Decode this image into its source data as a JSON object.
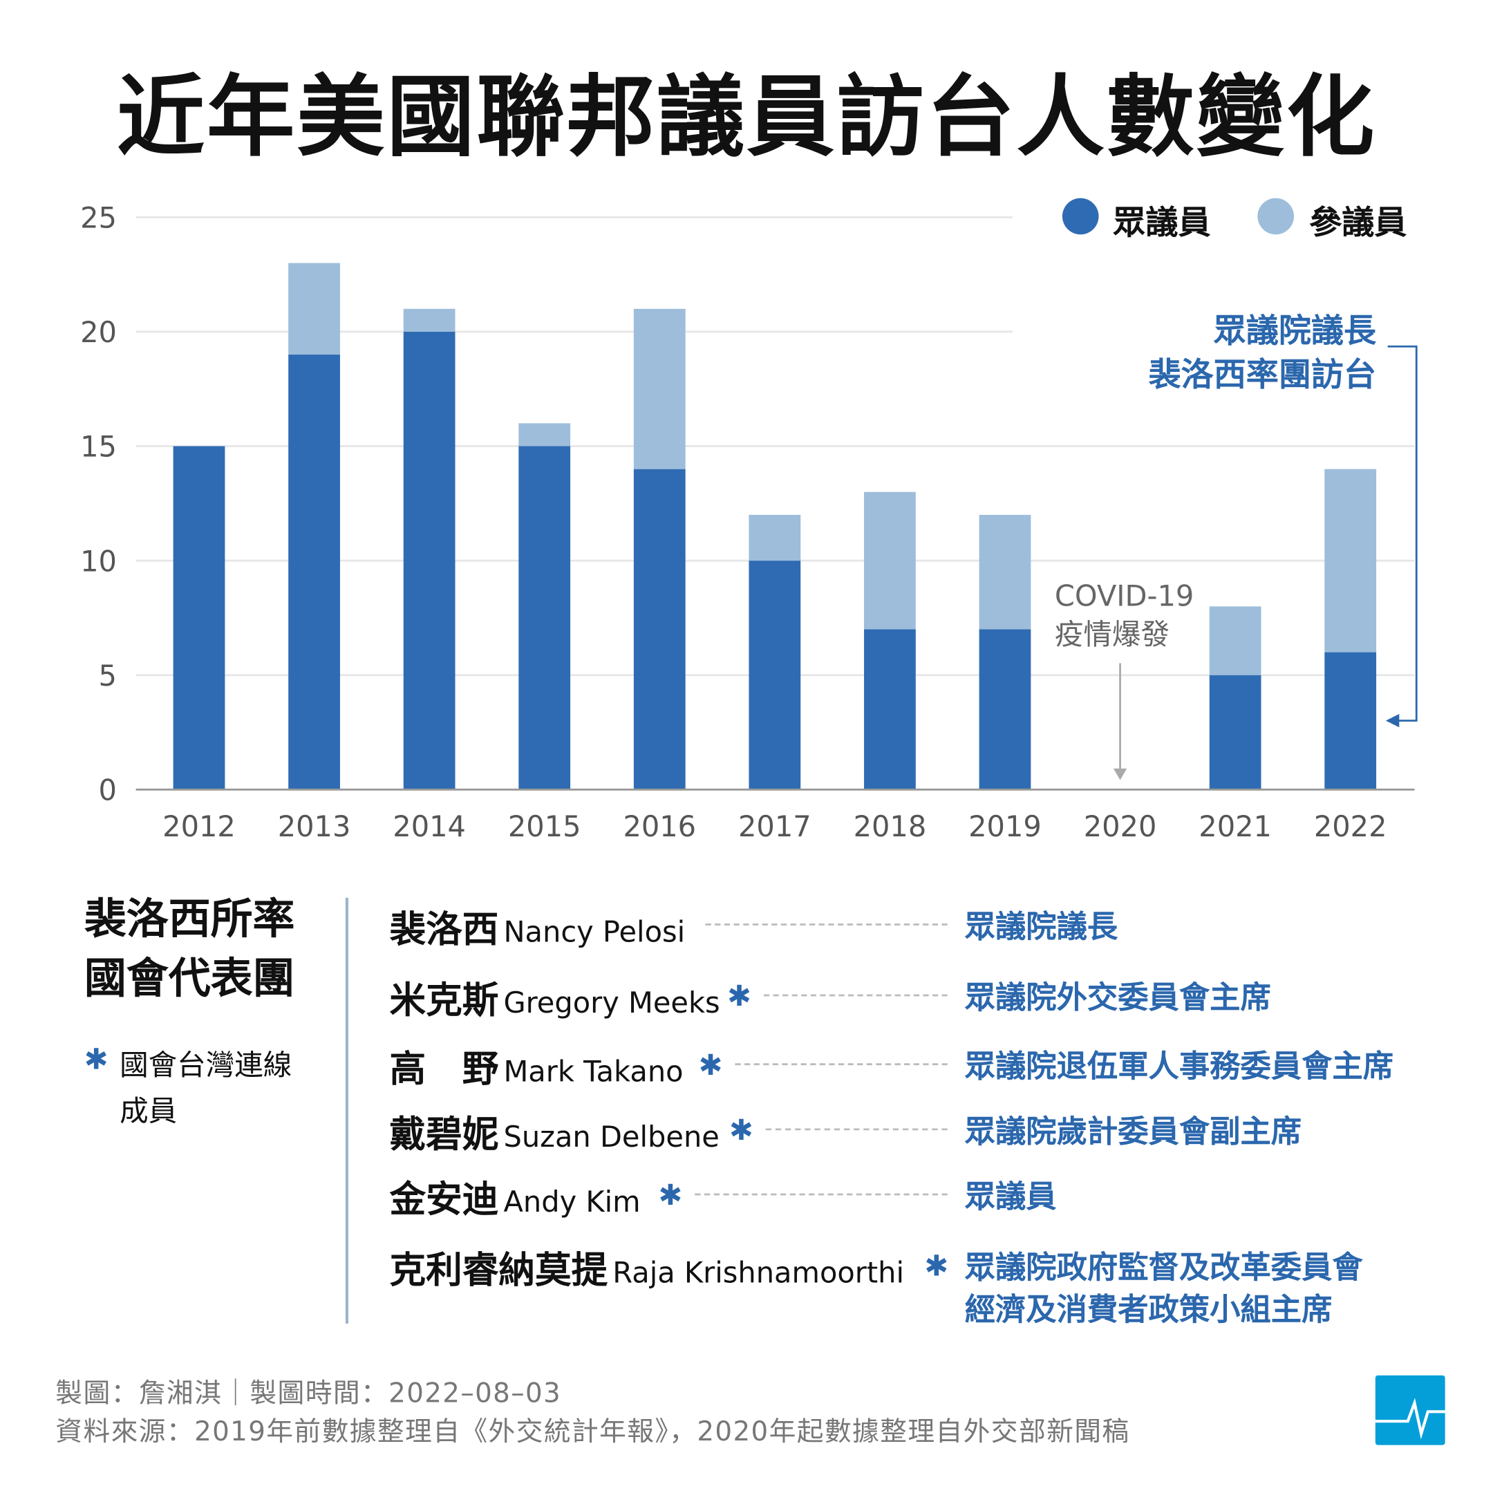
{
  "title": "近年美國聯邦議員訪台人數變化",
  "colors": {
    "house": "#2f6bb3",
    "senate": "#9dbddb",
    "accent": "#2b67ad",
    "logo": "#049fd9"
  },
  "chart_data": {
    "type": "bar",
    "stacked": true,
    "categories": [
      "2012",
      "2013",
      "2014",
      "2015",
      "2016",
      "2017",
      "2018",
      "2019",
      "2020",
      "2021",
      "2022"
    ],
    "series": [
      {
        "name": "眾議員",
        "values": [
          15,
          19,
          20,
          15,
          14,
          10,
          7,
          7,
          0,
          5,
          6
        ]
      },
      {
        "name": "參議員",
        "values": [
          0,
          4,
          1,
          1,
          7,
          2,
          6,
          5,
          0,
          3,
          8
        ]
      }
    ],
    "ylim": [
      0,
      25
    ],
    "yticks": [
      "0",
      "5",
      "10",
      "15",
      "20",
      "25"
    ],
    "grid": true,
    "legend_position": "top-right",
    "annotations": {
      "covid": [
        "COVID-19",
        "疫情爆發"
      ],
      "pelosi": [
        "眾議院議長",
        "裴洛西率團訪台"
      ]
    }
  },
  "delegation": {
    "title": [
      "裴洛西所率",
      "國會代表團"
    ],
    "star_note": [
      "國會台灣連線",
      "成員"
    ],
    "star": "✱",
    "members": [
      {
        "zh": "裴洛西",
        "en": "Nancy Pelosi",
        "star": false,
        "role": [
          "眾議院議長"
        ]
      },
      {
        "zh": "米克斯",
        "en": "Gregory Meeks",
        "star": true,
        "role": [
          "眾議院外交委員會主席"
        ]
      },
      {
        "zh": "高　野",
        "en": "Mark Takano",
        "star": true,
        "role": [
          "眾議院退伍軍人事務委員會主席"
        ]
      },
      {
        "zh": "戴碧妮",
        "en": "Suzan Delbene",
        "star": true,
        "role": [
          "眾議院歲計委員會副主席"
        ]
      },
      {
        "zh": "金安迪",
        "en": "Andy Kim",
        "star": true,
        "role": [
          "眾議員"
        ]
      },
      {
        "zh": "克利睿納莫提",
        "en": "Raja Krishnamoorthi",
        "star": true,
        "role": [
          "眾議院政府監督及改革委員會",
          "經濟及消費者政策小組主席"
        ]
      }
    ]
  },
  "footer": {
    "line1": "製圖：詹湘淇｜製圖時間：2022–08–03",
    "line2": "資料來源：2019年前數據整理自《外交統計年報》，2020年起數據整理自外交部新聞稿"
  }
}
